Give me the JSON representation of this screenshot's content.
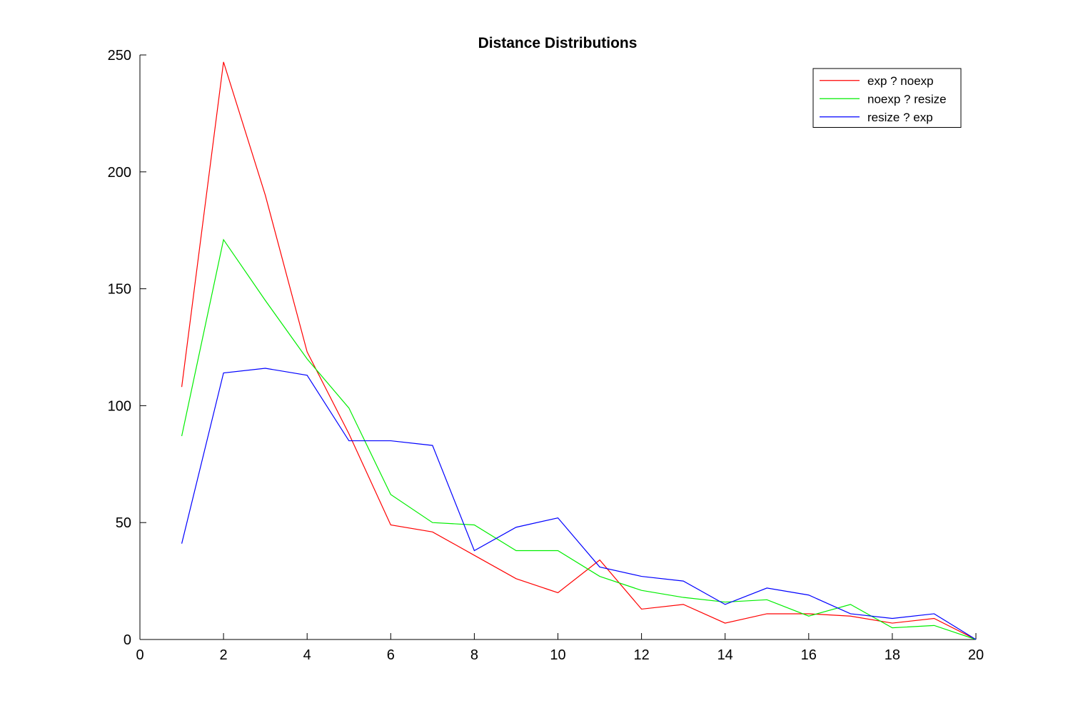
{
  "chart_data": {
    "type": "line",
    "title": "Distance Distributions",
    "xlabel": "",
    "ylabel": "",
    "xlim": [
      0,
      20
    ],
    "ylim": [
      0,
      250
    ],
    "xticks": [
      0,
      2,
      4,
      6,
      8,
      10,
      12,
      14,
      16,
      18,
      20
    ],
    "yticks": [
      0,
      50,
      100,
      150,
      200,
      250
    ],
    "grid": false,
    "legend_position": "top-right",
    "x": [
      1,
      2,
      3,
      4,
      5,
      6,
      7,
      8,
      9,
      10,
      11,
      12,
      13,
      14,
      15,
      16,
      17,
      18,
      19,
      20
    ],
    "series": [
      {
        "name": "exp ? noexp",
        "color": "#ff0000",
        "values": [
          108,
          247,
          190,
          123,
          88,
          49,
          46,
          36,
          26,
          20,
          34,
          13,
          15,
          7,
          11,
          11,
          10,
          7,
          9,
          0
        ]
      },
      {
        "name": "noexp ? resize",
        "color": "#00ee00",
        "values": [
          87,
          171,
          145,
          120,
          99,
          62,
          50,
          49,
          38,
          38,
          27,
          21,
          18,
          16,
          17,
          10,
          15,
          5,
          6,
          0
        ]
      },
      {
        "name": "resize ? exp",
        "color": "#0000ff",
        "values": [
          41,
          114,
          116,
          113,
          85,
          85,
          83,
          38,
          48,
          52,
          31,
          27,
          25,
          15,
          22,
          19,
          11,
          9,
          11,
          0
        ]
      }
    ]
  }
}
